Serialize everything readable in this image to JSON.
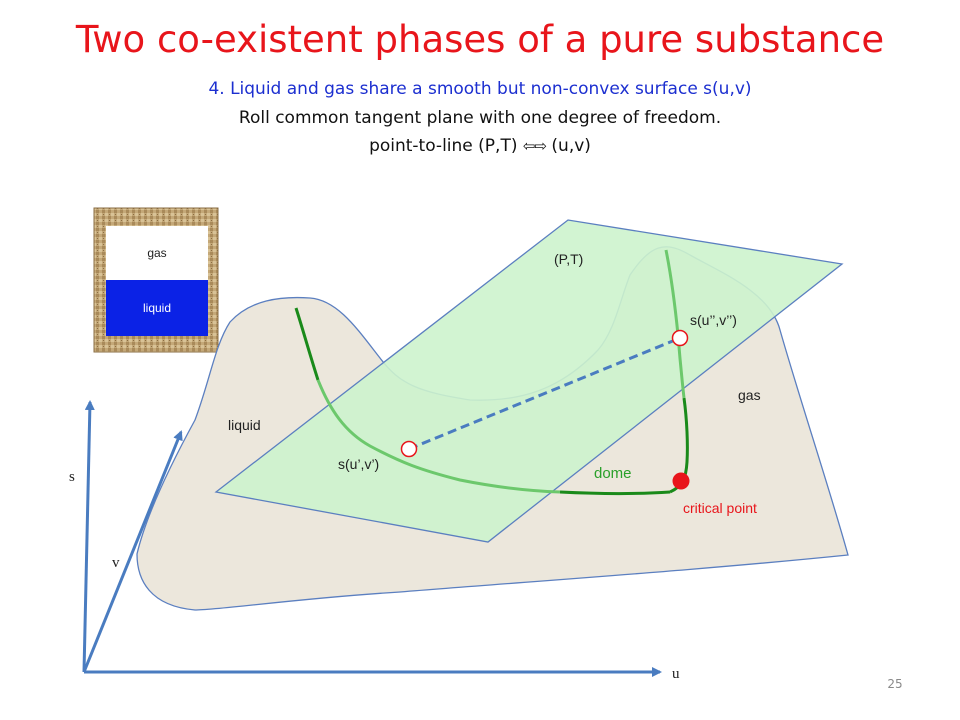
{
  "slide": {
    "title": "Two co-existent phases of a pure substance",
    "subtitle_1": "4. Liquid and gas share a smooth but non-convex surface s(u,v)",
    "subtitle_2": "Roll common tangent plane with one degree of freedom.",
    "subtitle_3_before": "point-to-line (P,T)",
    "subtitle_3_arrow": "⇦⇨",
    "subtitle_3_after": "(u,v)",
    "page_number": "25"
  },
  "container": {
    "gas_label": "gas",
    "liquid_label": "liquid"
  },
  "diagram": {
    "plane_label": "(P,T)",
    "point_gas_label": "s(u’’,v’’)",
    "point_liquid_label": "s(u’,v’)",
    "gas_region_label": "gas",
    "liquid_region_label": "liquid",
    "dome_label": "dome",
    "critical_point_label": "critical point"
  },
  "axes": {
    "s_label": "s",
    "v_label": "v",
    "u_label": "u"
  },
  "colors": {
    "title": "#e8151b",
    "subtitle_blue": "#1c2fd0",
    "surface_fill": "#ece7dc",
    "plane_fill": "#cdf3cd",
    "curve_dark": "#1a8a1a",
    "curve_light": "#6cc86c",
    "axis_blue": "#4a7cc0",
    "critical_point": "#e8151b",
    "liquid_blue": "#0b22e6"
  }
}
